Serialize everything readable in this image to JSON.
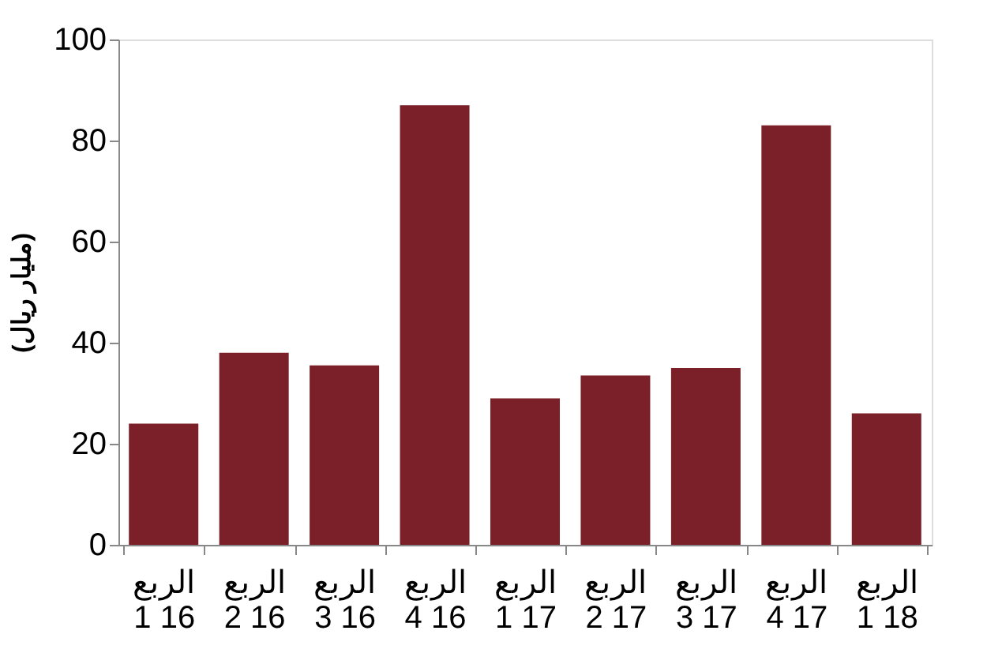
{
  "chart_data": {
    "type": "bar",
    "ylabel": "(مليار ريال)",
    "categories": [
      "الربع 1 16",
      "الربع 2 16",
      "الربع 3 16",
      "الربع 4 16",
      "الربع 1 17",
      "الربع 2 17",
      "الربع 3 17",
      "الربع 4 17",
      "الربع 1 18"
    ],
    "values": [
      24,
      38,
      35.5,
      87,
      29,
      33.5,
      35,
      83,
      26
    ],
    "color": "#7b2028",
    "ylim": [
      0,
      100
    ],
    "yticks": [
      0,
      20,
      40,
      60,
      80,
      100
    ],
    "grid": false
  }
}
